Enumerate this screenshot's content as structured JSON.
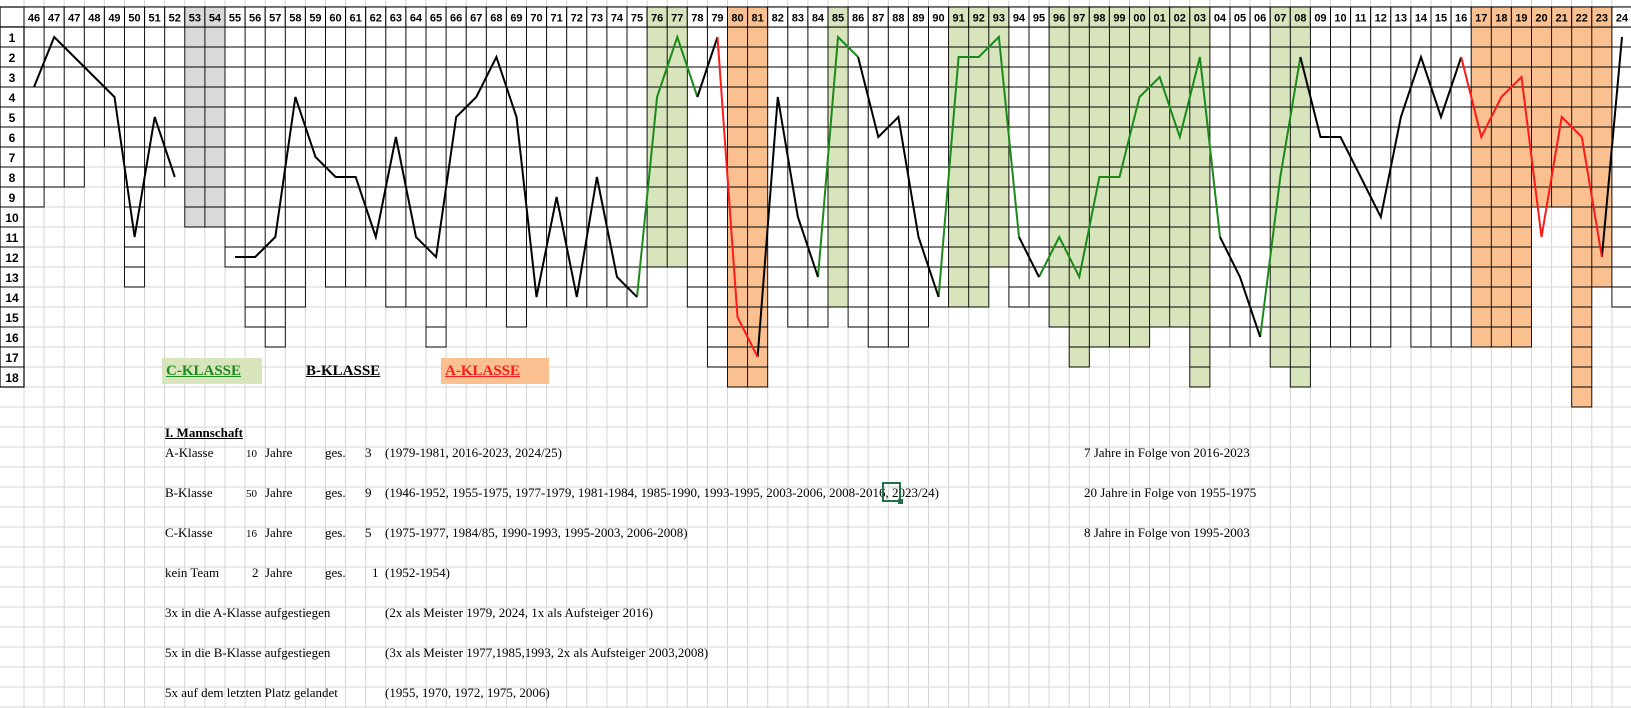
{
  "chart_data": {
    "type": "line",
    "x_labels": [
      "46",
      "47",
      "47",
      "48",
      "49",
      "50",
      "51",
      "52",
      "53",
      "54",
      "55",
      "56",
      "57",
      "58",
      "59",
      "60",
      "61",
      "62",
      "63",
      "64",
      "65",
      "66",
      "67",
      "68",
      "69",
      "70",
      "71",
      "72",
      "73",
      "74",
      "75",
      "76",
      "77",
      "78",
      "79",
      "80",
      "81",
      "82",
      "83",
      "84",
      "85",
      "86",
      "87",
      "88",
      "89",
      "90",
      "91",
      "92",
      "93",
      "94",
      "95",
      "96",
      "97",
      "98",
      "99",
      "00",
      "01",
      "02",
      "03",
      "04",
      "05",
      "06",
      "07",
      "08",
      "09",
      "10",
      "11",
      "12",
      "13",
      "14",
      "15",
      "16",
      "17",
      "18",
      "19",
      "20",
      "21",
      "22",
      "23",
      "24"
    ],
    "y_labels": [
      "1",
      "2",
      "3",
      "4",
      "5",
      "6",
      "7",
      "8",
      "9",
      "10",
      "11",
      "12",
      "13",
      "14",
      "15",
      "16",
      "17",
      "18"
    ],
    "y_range": [
      1,
      18
    ],
    "y_inverted": true,
    "league_sizes": [
      9,
      8,
      8,
      6,
      6,
      13,
      8,
      8,
      10,
      10,
      12,
      15,
      16,
      14,
      12,
      13,
      13,
      13,
      14,
      14,
      16,
      14,
      14,
      14,
      15,
      14,
      14,
      14,
      14,
      14,
      14,
      12,
      12,
      14,
      17,
      18,
      18,
      14,
      15,
      15,
      14,
      15,
      16,
      16,
      15,
      14,
      14,
      14,
      12,
      14,
      14,
      15,
      17,
      16,
      16,
      16,
      15,
      15,
      18,
      16,
      16,
      16,
      17,
      18,
      16,
      16,
      16,
      16,
      15,
      16,
      16,
      16,
      16,
      16,
      16,
      9,
      9,
      19,
      13,
      14
    ],
    "gap_columns": [
      8,
      9
    ],
    "class_bands": [
      {
        "class": "C",
        "from": 31,
        "to": 32
      },
      {
        "class": "A",
        "from": 35,
        "to": 36
      },
      {
        "class": "C",
        "from": 40,
        "to": 40
      },
      {
        "class": "C",
        "from": 46,
        "to": 48
      },
      {
        "class": "C",
        "from": 51,
        "to": 58
      },
      {
        "class": "C",
        "from": 62,
        "to": 63
      },
      {
        "class": "A",
        "from": 72,
        "to": 78
      }
    ],
    "placements": [
      3.5,
      1,
      null,
      3,
      4,
      11,
      5,
      8,
      null,
      null,
      12,
      12,
      11,
      4,
      7,
      8,
      8,
      11,
      6,
      11,
      12,
      5,
      4,
      2,
      5,
      14,
      9,
      14,
      8,
      13,
      14,
      4,
      1,
      4,
      1,
      15,
      17,
      4,
      10,
      13,
      1,
      2,
      6,
      5,
      11,
      14,
      2,
      2,
      1,
      11,
      13,
      11,
      13,
      8,
      8,
      4,
      3,
      6,
      2,
      11,
      13,
      16,
      8,
      2,
      6,
      6,
      8,
      10,
      5,
      2,
      5,
      2,
      6,
      4,
      3,
      11,
      5,
      6,
      12,
      1
    ],
    "series": [
      {
        "name": "C-KLASSE",
        "color": "#1a8a1a",
        "segments": [
          [
            30,
            33
          ],
          [
            39,
            41
          ],
          [
            45,
            49
          ],
          [
            50,
            59
          ],
          [
            61,
            63
          ]
        ]
      },
      {
        "name": "B-KLASSE",
        "color": "#000000",
        "segments": [
          [
            0,
            7
          ],
          [
            10,
            30
          ],
          [
            33,
            34
          ],
          [
            36,
            39
          ],
          [
            41,
            45
          ],
          [
            49,
            50
          ],
          [
            59,
            61
          ],
          [
            63,
            71
          ],
          [
            78,
            79
          ]
        ]
      },
      {
        "name": "A-KLASSE",
        "color": "#ff1a1a",
        "segments": [
          [
            34,
            36
          ],
          [
            71,
            78
          ]
        ]
      }
    ],
    "band_colors": {
      "C": "#d8e4bc",
      "A": "#fac090",
      "gap": "#d9d9d9"
    }
  },
  "legend": {
    "c": "C-KLASSE",
    "b": "B-KLASSE",
    "a": "A-KLASSE"
  },
  "notes": {
    "title": "I. Mannschaft",
    "rows": [
      {
        "label": "A-Klasse",
        "years": "10",
        "unit": "Jahre",
        "ges": "ges.",
        "count": "3",
        "detail": "(1979-1981, 2016-2023, 2024/25)",
        "streak": "7 Jahre in Folge von 2016-2023"
      },
      {
        "label": "B-Klasse",
        "years": "50",
        "unit": "Jahre",
        "ges": "ges.",
        "count": "9",
        "detail": "(1946-1952, 1955-1975, 1977-1979, 1981-1984, 1985-1990, 1993-1995, 2003-2006, 2008-2016, 2023/24)",
        "streak": "20 Jahre in Folge von 1955-1975"
      },
      {
        "label": "C-Klasse",
        "years": "16",
        "unit": "Jahre",
        "ges": "ges.",
        "count": "5",
        "detail": "(1975-1977, 1984/85, 1990-1993, 1995-2003, 2006-2008)",
        "streak": "8 Jahre in Folge von 1995-2003"
      },
      {
        "label": "kein Team",
        "years": "2",
        "unit": "Jahre",
        "ges": "ges.",
        "count": "1",
        "detail": "(1952-1954)",
        "streak": ""
      }
    ],
    "facts": [
      {
        "label": "3x in die A-Klasse aufgestiegen",
        "detail": "(2x als Meister 1979, 2024, 1x als Aufsteiger 2016)"
      },
      {
        "label": "5x in die B-Klasse aufgestiegen",
        "detail": "(3x als Meister 1977,1985,1993, 2x als Aufsteiger 2003,2008)"
      },
      {
        "label": "5x auf dem letzten Platz gelandet",
        "detail": "(1955, 1970, 1972, 1975, 2006)"
      }
    ]
  }
}
